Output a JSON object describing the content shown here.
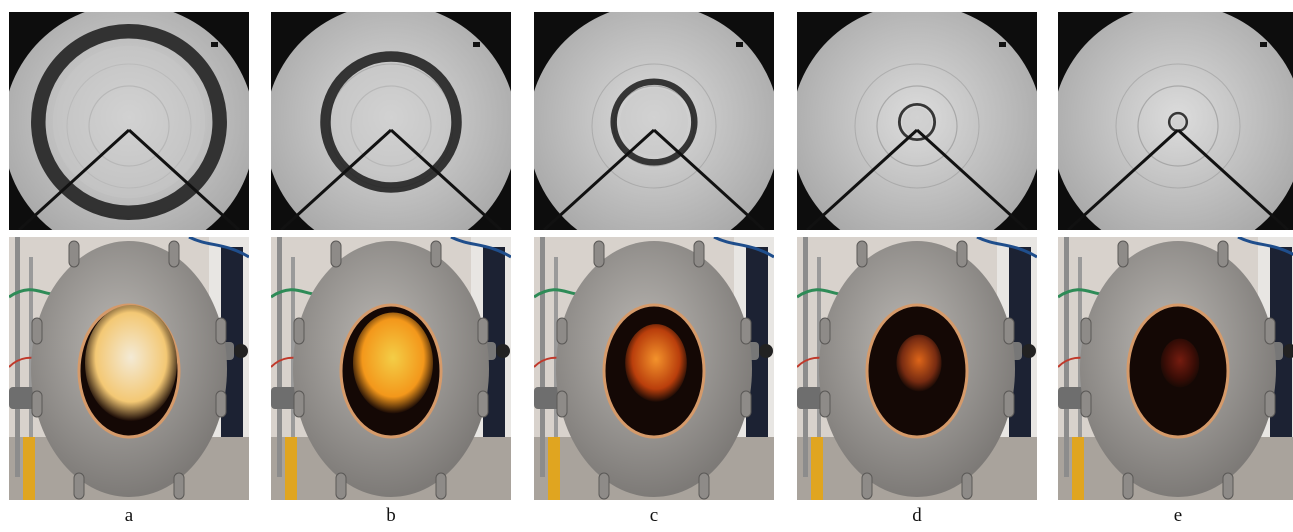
{
  "figure": {
    "panels": [
      {
        "label": "a",
        "kernel_scale": 0.72,
        "flame_color": "#fff6e0",
        "flame_glow": "#ffd27a"
      },
      {
        "label": "b",
        "kernel_scale": 0.52,
        "flame_color": "#ffd84a",
        "flame_glow": "#ff9f1c"
      },
      {
        "label": "c",
        "kernel_scale": 0.32,
        "flame_color": "#ff9a2e",
        "flame_glow": "#c2410c"
      },
      {
        "label": "d",
        "kernel_scale": 0.14,
        "flame_color": "#e86a1a",
        "flame_glow": "#7c2d12"
      },
      {
        "label": "e",
        "kernel_scale": 0.07,
        "flame_color": "#7a1d10",
        "flame_glow": "#3b0d06"
      }
    ]
  }
}
